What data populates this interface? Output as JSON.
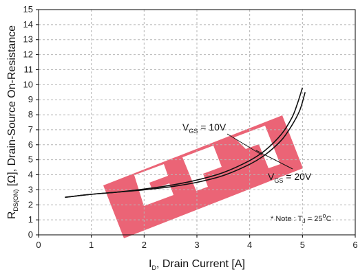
{
  "chart_data": {
    "type": "line",
    "title": "",
    "xlabel": {
      "main": "I",
      "sub": "D",
      "rest": ", Drain Current [A]"
    },
    "ylabel": {
      "main": "R",
      "sub": "DS(ON)",
      "rest": " [Ω], Drain-Source On-Resistance"
    },
    "xlim": [
      0,
      6
    ],
    "ylim": [
      0,
      15
    ],
    "xticks": [
      0,
      1,
      2,
      3,
      4,
      5,
      6
    ],
    "yticks": [
      0,
      1,
      2,
      3,
      4,
      5,
      6,
      7,
      8,
      9,
      10,
      11,
      12,
      13,
      14,
      15
    ],
    "grid": "dashed",
    "series": [
      {
        "name": "V_GS = 10V",
        "x": [
          0.5,
          1.0,
          1.5,
          2.0,
          2.5,
          3.0,
          3.5,
          4.0,
          4.3,
          4.6,
          4.8,
          4.9,
          5.0
        ],
        "y": [
          2.5,
          2.7,
          2.85,
          3.05,
          3.3,
          3.65,
          4.15,
          4.95,
          5.65,
          6.7,
          7.8,
          8.7,
          9.8
        ]
      },
      {
        "name": "V_GS = 20V",
        "x": [
          0.5,
          1.0,
          1.5,
          2.0,
          2.5,
          3.0,
          3.5,
          4.0,
          4.3,
          4.6,
          4.8,
          4.95,
          5.05
        ],
        "y": [
          2.5,
          2.7,
          2.85,
          3.0,
          3.2,
          3.5,
          3.95,
          4.7,
          5.35,
          6.3,
          7.3,
          8.3,
          9.5
        ]
      }
    ],
    "annotations": [
      {
        "main": "V",
        "sub": "GS",
        "rest": " = 10V",
        "series": 0
      },
      {
        "main": "V",
        "sub": "GS",
        "rest": " = 20V",
        "series": 1
      }
    ],
    "note": {
      "prefix": "* Note : T",
      "sub": "J",
      "mid": " = 25",
      "sup": "o",
      "rest": "C"
    },
    "colors": {
      "lines": "#111111",
      "watermark": "#e8495f",
      "grid": "#b5b5b5"
    }
  }
}
